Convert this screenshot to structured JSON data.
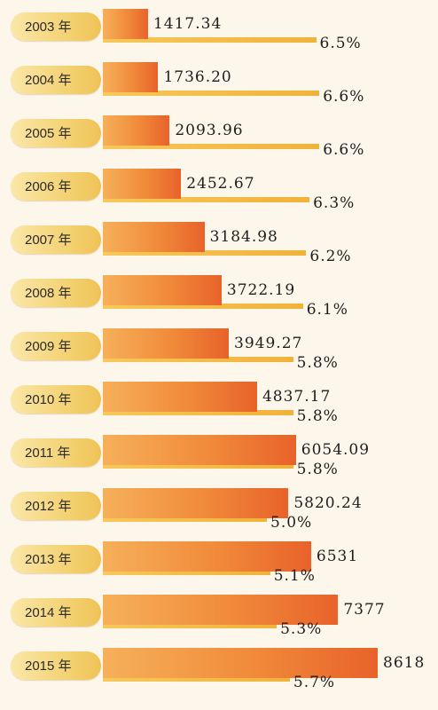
{
  "chart_data": {
    "type": "bar",
    "categories": [
      "2003 年",
      "2004 年",
      "2005 年",
      "2006 年",
      "2007 年",
      "2008 年",
      "2009 年",
      "2010 年",
      "2011 年",
      "2012 年",
      "2013 年",
      "2014 年",
      "2015 年"
    ],
    "series": [
      {
        "values": [
          1417.34,
          1736.2,
          2093.96,
          2452.67,
          3184.98,
          3722.19,
          3949.27,
          4837.17,
          6054.09,
          5820.24,
          6531,
          7377,
          8618
        ],
        "labels": [
          "1417.34",
          "1736.20",
          "2093.96",
          "2452.67",
          "3184.98",
          "3722.19",
          "3949.27",
          "4837.17",
          "6054.09",
          "5820.24",
          "6531",
          "7377",
          "8618"
        ]
      },
      {
        "values": [
          6.5,
          6.6,
          6.6,
          6.3,
          6.2,
          6.1,
          5.8,
          5.8,
          5.8,
          5.0,
          5.1,
          5.3,
          5.7
        ],
        "labels": [
          "6.5%",
          "6.6%",
          "6.6%",
          "6.3%",
          "6.2%",
          "6.1%",
          "5.8%",
          "5.8%",
          "5.8%",
          "5.0%",
          "5.1%",
          "5.3%",
          "5.7%"
        ]
      }
    ],
    "orientation": "horizontal",
    "title": "",
    "xlabel": "",
    "ylabel": "",
    "legend": "none",
    "grid": false,
    "colors": {
      "background": "#fdf6ea",
      "value_bar": "#f08a3a",
      "rate_bar": "#f1b23a",
      "year_pill": "#f3cf6d"
    }
  }
}
